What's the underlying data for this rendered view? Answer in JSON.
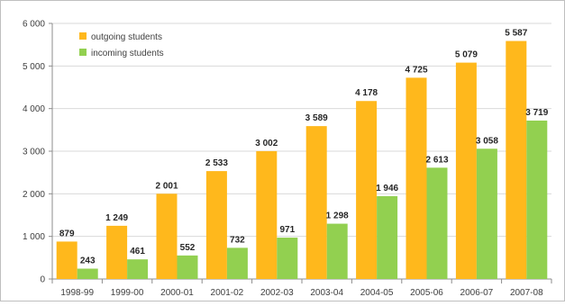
{
  "chart_data": {
    "type": "bar",
    "title": "",
    "xlabel": "",
    "ylabel": "",
    "categories": [
      "1998-99",
      "1999-00",
      "2000-01",
      "2001-02",
      "2002-03",
      "2003-04",
      "2004-05",
      "2005-06",
      "2006-07",
      "2007-08"
    ],
    "series": [
      {
        "name": "outgoing students",
        "color": "#FFB81C",
        "values": [
          879,
          1249,
          2001,
          2533,
          3002,
          3589,
          4178,
          4725,
          5079,
          5587
        ]
      },
      {
        "name": "incoming students",
        "color": "#92D050",
        "values": [
          243,
          461,
          552,
          732,
          971,
          1298,
          1946,
          2613,
          3058,
          3719
        ]
      }
    ],
    "ylim": [
      0,
      6000
    ],
    "yticks": [
      0,
      1000,
      2000,
      3000,
      4000,
      5000,
      6000
    ],
    "ytick_labels": [
      "0",
      "1 000",
      "2 000",
      "3 000",
      "4 000",
      "5 000",
      "6 000"
    ],
    "value_labels": {
      "outgoing students": [
        "879",
        "1 249",
        "2 001",
        "2 533",
        "3 002",
        "3 589",
        "4 178",
        "4 725",
        "5 079",
        "5 587"
      ],
      "incoming students": [
        "243",
        "461",
        "552",
        "732",
        "971",
        "1 298",
        "1 946",
        "2 613",
        "3 058",
        "3 719"
      ]
    },
    "legend_position": "top-left",
    "grid": true
  }
}
